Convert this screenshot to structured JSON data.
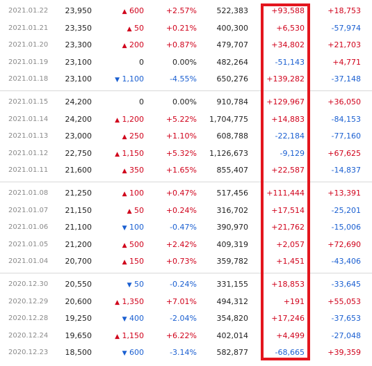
{
  "colors": {
    "up": "#d0021b",
    "down": "#1a5fd1",
    "highlight_box": "#e3161e"
  },
  "icons": {
    "up": "up-triangle-icon",
    "down": "down-triangle-icon"
  },
  "groups": [
    {
      "rows": [
        {
          "date": "2021.01.22",
          "close": "23,950",
          "dir": "up",
          "change": "600",
          "pct": "+2.57%",
          "volume": "522,383",
          "foreign": "+93,588",
          "inst": "+18,753"
        },
        {
          "date": "2021.01.21",
          "close": "23,350",
          "dir": "up",
          "change": "50",
          "pct": "+0.21%",
          "volume": "400,300",
          "foreign": "+6,530",
          "inst": "-57,974"
        },
        {
          "date": "2021.01.20",
          "close": "23,300",
          "dir": "up",
          "change": "200",
          "pct": "+0.87%",
          "volume": "479,707",
          "foreign": "+34,802",
          "inst": "+21,703"
        },
        {
          "date": "2021.01.19",
          "close": "23,100",
          "dir": "flat",
          "change": "0",
          "pct": "0.00%",
          "volume": "482,264",
          "foreign": "-51,143",
          "inst": "+4,771"
        },
        {
          "date": "2021.01.18",
          "close": "23,100",
          "dir": "down",
          "change": "1,100",
          "pct": "-4.55%",
          "volume": "650,276",
          "foreign": "+139,282",
          "inst": "-37,148"
        }
      ]
    },
    {
      "rows": [
        {
          "date": "2021.01.15",
          "close": "24,200",
          "dir": "flat",
          "change": "0",
          "pct": "0.00%",
          "volume": "910,784",
          "foreign": "+129,967",
          "inst": "+36,050"
        },
        {
          "date": "2021.01.14",
          "close": "24,200",
          "dir": "up",
          "change": "1,200",
          "pct": "+5.22%",
          "volume": "1,704,775",
          "foreign": "+14,883",
          "inst": "-84,153"
        },
        {
          "date": "2021.01.13",
          "close": "23,000",
          "dir": "up",
          "change": "250",
          "pct": "+1.10%",
          "volume": "608,788",
          "foreign": "-22,184",
          "inst": "-77,160"
        },
        {
          "date": "2021.01.12",
          "close": "22,750",
          "dir": "up",
          "change": "1,150",
          "pct": "+5.32%",
          "volume": "1,126,673",
          "foreign": "-9,129",
          "inst": "+67,625"
        },
        {
          "date": "2021.01.11",
          "close": "21,600",
          "dir": "up",
          "change": "350",
          "pct": "+1.65%",
          "volume": "855,407",
          "foreign": "+22,587",
          "inst": "-14,837"
        }
      ]
    },
    {
      "rows": [
        {
          "date": "2021.01.08",
          "close": "21,250",
          "dir": "up",
          "change": "100",
          "pct": "+0.47%",
          "volume": "517,456",
          "foreign": "+111,444",
          "inst": "+13,391"
        },
        {
          "date": "2021.01.07",
          "close": "21,150",
          "dir": "up",
          "change": "50",
          "pct": "+0.24%",
          "volume": "316,702",
          "foreign": "+17,514",
          "inst": "-25,201"
        },
        {
          "date": "2021.01.06",
          "close": "21,100",
          "dir": "down",
          "change": "100",
          "pct": "-0.47%",
          "volume": "390,970",
          "foreign": "+21,762",
          "inst": "-15,006"
        },
        {
          "date": "2021.01.05",
          "close": "21,200",
          "dir": "up",
          "change": "500",
          "pct": "+2.42%",
          "volume": "409,319",
          "foreign": "+2,057",
          "inst": "+72,690"
        },
        {
          "date": "2021.01.04",
          "close": "20,700",
          "dir": "up",
          "change": "150",
          "pct": "+0.73%",
          "volume": "359,782",
          "foreign": "+1,451",
          "inst": "-43,406"
        }
      ]
    },
    {
      "rows": [
        {
          "date": "2020.12.30",
          "close": "20,550",
          "dir": "down",
          "change": "50",
          "pct": "-0.24%",
          "volume": "331,155",
          "foreign": "+18,853",
          "inst": "-33,645"
        },
        {
          "date": "2020.12.29",
          "close": "20,600",
          "dir": "up",
          "change": "1,350",
          "pct": "+7.01%",
          "volume": "494,312",
          "foreign": "+191",
          "inst": "+55,053"
        },
        {
          "date": "2020.12.28",
          "close": "19,250",
          "dir": "down",
          "change": "400",
          "pct": "-2.04%",
          "volume": "354,820",
          "foreign": "+17,246",
          "inst": "-37,653"
        },
        {
          "date": "2020.12.24",
          "close": "19,650",
          "dir": "up",
          "change": "1,150",
          "pct": "+6.22%",
          "volume": "402,014",
          "foreign": "+4,499",
          "inst": "-27,048"
        },
        {
          "date": "2020.12.23",
          "close": "18,500",
          "dir": "down",
          "change": "600",
          "pct": "-3.14%",
          "volume": "582,877",
          "foreign": "-68,665",
          "inst": "+39,359"
        }
      ]
    }
  ]
}
